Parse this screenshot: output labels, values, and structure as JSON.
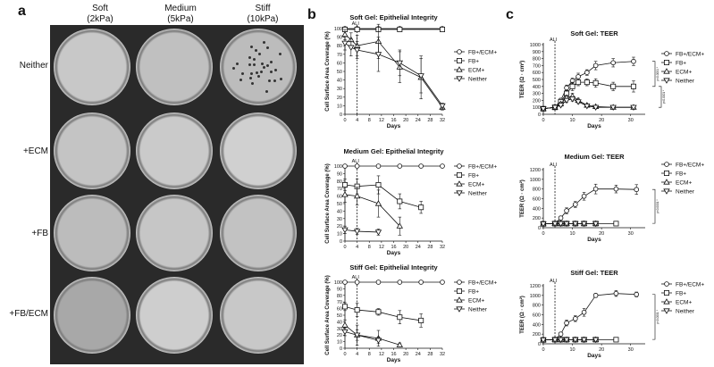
{
  "panel_a": {
    "letter": "a",
    "columns": [
      {
        "label": "Soft",
        "sub": "(2kPa)"
      },
      {
        "label": "Medium",
        "sub": "(5kPa)"
      },
      {
        "label": "Stiff",
        "sub": "(10kPa)"
      }
    ],
    "rows": [
      "Neither",
      "+ECM",
      "+FB",
      "+FB/ECM"
    ]
  },
  "panel_b": {
    "letter": "b"
  },
  "panel_c": {
    "letter": "c"
  },
  "chart_data": [
    {
      "id": "b1",
      "type": "line",
      "title": "Soft Gel: Epithelial Integrity",
      "xlabel": "Days",
      "ylabel": "Cell Surface Area Coverage (%)",
      "xlim": [
        0,
        32
      ],
      "ylim": [
        0,
        100
      ],
      "xticks": [
        0,
        4,
        8,
        12,
        16,
        20,
        24,
        28,
        32
      ],
      "yticks": [
        0,
        10,
        20,
        30,
        40,
        50,
        60,
        70,
        80,
        90,
        100
      ],
      "ali_day": 4,
      "ali_label": "ALI",
      "series": [
        {
          "name": "FB+/ECM+",
          "marker": "circle",
          "x": [
            0,
            4,
            11,
            18,
            32
          ],
          "y": [
            100,
            100,
            100,
            100,
            100
          ],
          "err": [
            0,
            0,
            0,
            0,
            0
          ]
        },
        {
          "name": "FB+",
          "marker": "square",
          "x": [
            0,
            4,
            11,
            18,
            32
          ],
          "y": [
            99,
            99,
            99,
            99,
            99
          ],
          "err": [
            0,
            0,
            0,
            0,
            0
          ]
        },
        {
          "name": "ECM+",
          "marker": "triangle-up",
          "x": [
            0,
            2,
            4,
            11,
            18,
            25,
            32
          ],
          "y": [
            93,
            87,
            80,
            85,
            55,
            43,
            8
          ],
          "err": [
            6,
            8,
            12,
            20,
            18,
            25,
            3
          ]
        },
        {
          "name": "Neither",
          "marker": "triangle-down",
          "x": [
            0,
            2,
            4,
            11,
            18,
            25,
            32
          ],
          "y": [
            83,
            78,
            75,
            70,
            60,
            45,
            10
          ],
          "err": [
            8,
            10,
            10,
            20,
            15,
            20,
            3
          ]
        }
      ]
    },
    {
      "id": "b2",
      "type": "line",
      "title": "Medium Gel: Epithelial Integrity",
      "xlabel": "Days",
      "ylabel": "Cell Surface Area  Coverage (%)",
      "xlim": [
        0,
        32
      ],
      "ylim": [
        0,
        100
      ],
      "xticks": [
        0,
        4,
        8,
        12,
        16,
        20,
        24,
        28,
        32
      ],
      "yticks": [
        0,
        10,
        20,
        30,
        40,
        50,
        60,
        70,
        80,
        90,
        100
      ],
      "ali_day": 4,
      "ali_label": "ALI",
      "series": [
        {
          "name": "FB+/ECM+",
          "marker": "circle",
          "x": [
            0,
            4,
            11,
            18,
            25,
            32
          ],
          "y": [
            100,
            100,
            100,
            100,
            100,
            100
          ],
          "err": [
            0,
            0,
            0,
            0,
            0,
            0
          ]
        },
        {
          "name": "FB+",
          "marker": "square",
          "x": [
            0,
            4,
            11,
            18,
            25
          ],
          "y": [
            75,
            73,
            75,
            53,
            45
          ],
          "err": [
            8,
            10,
            12,
            10,
            8
          ]
        },
        {
          "name": "ECM+",
          "marker": "triangle-up",
          "x": [
            0,
            4,
            11,
            18
          ],
          "y": [
            62,
            60,
            50,
            20
          ],
          "err": [
            10,
            12,
            18,
            12
          ]
        },
        {
          "name": "Neither",
          "marker": "triangle-down",
          "x": [
            0,
            4,
            11
          ],
          "y": [
            15,
            13,
            12
          ],
          "err": [
            5,
            4,
            4
          ]
        }
      ]
    },
    {
      "id": "b3",
      "type": "line",
      "title": "Stiff Gel: Epithelial Integrity",
      "xlabel": "Days",
      "ylabel": "Cell Surface Area  Coverage (%)",
      "xlim": [
        0,
        32
      ],
      "ylim": [
        0,
        100
      ],
      "xticks": [
        0,
        4,
        8,
        12,
        16,
        20,
        24,
        28,
        32
      ],
      "yticks": [
        0,
        10,
        20,
        30,
        40,
        50,
        60,
        70,
        80,
        90,
        100
      ],
      "ali_day": 4,
      "ali_label": "ALI",
      "series": [
        {
          "name": "FB+/ECM+",
          "marker": "circle",
          "x": [
            0,
            4,
            11,
            18,
            25,
            32
          ],
          "y": [
            100,
            100,
            100,
            100,
            100,
            100
          ],
          "err": [
            0,
            0,
            0,
            0,
            0,
            0
          ]
        },
        {
          "name": "FB+",
          "marker": "square",
          "x": [
            0,
            4,
            11,
            18,
            25
          ],
          "y": [
            63,
            58,
            55,
            47,
            42
          ],
          "err": [
            6,
            10,
            5,
            10,
            10
          ]
        },
        {
          "name": "ECM+",
          "marker": "triangle-up",
          "x": [
            0,
            4,
            11,
            18
          ],
          "y": [
            35,
            20,
            15,
            5
          ],
          "err": [
            8,
            15,
            12,
            3
          ]
        },
        {
          "name": "Neither",
          "marker": "triangle-down",
          "x": [
            0,
            4,
            11
          ],
          "y": [
            25,
            20,
            12
          ],
          "err": [
            6,
            8,
            5
          ]
        }
      ]
    },
    {
      "id": "c1",
      "type": "line",
      "title": "Soft Gel: TEER",
      "xlabel": "Days",
      "ylabel": "TEER (Ω · cm²)",
      "xlim": [
        0,
        35
      ],
      "ylim": [
        0,
        1000
      ],
      "xticks": [
        0,
        10,
        20,
        30
      ],
      "yticks": [
        0,
        100,
        200,
        300,
        400,
        500,
        600,
        700,
        800,
        900,
        1000
      ],
      "ali_day": 4,
      "ali_label": "ALI",
      "series": [
        {
          "name": "FB+/ECM+",
          "marker": "circle",
          "x": [
            0,
            4,
            6,
            8,
            10,
            12,
            15,
            18,
            24,
            31
          ],
          "y": [
            80,
            100,
            200,
            380,
            480,
            540,
            600,
            700,
            740,
            760
          ],
          "err": [
            10,
            15,
            30,
            40,
            40,
            50,
            40,
            60,
            60,
            60
          ]
        },
        {
          "name": "FB+",
          "marker": "square",
          "x": [
            0,
            4,
            6,
            8,
            10,
            12,
            15,
            18,
            24,
            31
          ],
          "y": [
            80,
            100,
            180,
            300,
            400,
            460,
            460,
            450,
            400,
            400
          ],
          "err": [
            10,
            15,
            30,
            40,
            60,
            50,
            50,
            60,
            60,
            80
          ]
        },
        {
          "name": "ECM+",
          "marker": "triangle-up",
          "x": [
            0,
            4,
            6,
            8,
            10,
            12,
            15,
            18,
            24,
            31
          ],
          "y": [
            80,
            100,
            150,
            240,
            260,
            200,
            130,
            110,
            100,
            100
          ],
          "err": [
            10,
            15,
            20,
            30,
            40,
            30,
            20,
            15,
            10,
            10
          ]
        },
        {
          "name": "Neither",
          "marker": "triangle-down",
          "x": [
            0,
            4,
            6,
            8,
            10,
            12,
            15,
            18,
            24,
            31
          ],
          "y": [
            80,
            100,
            130,
            200,
            220,
            180,
            120,
            100,
            100,
            100
          ],
          "err": [
            10,
            15,
            20,
            30,
            30,
            25,
            20,
            15,
            10,
            10
          ]
        }
      ],
      "brackets": [
        "p<0.0001 *",
        "p<0.0001 *"
      ]
    },
    {
      "id": "c2",
      "type": "line",
      "title": "Medium Gel: TEER",
      "xlabel": "Days",
      "ylabel": "TEER (Ω · cm²)",
      "xlim": [
        0,
        35
      ],
      "ylim": [
        0,
        1200
      ],
      "xticks": [
        0,
        10,
        20,
        30
      ],
      "yticks": [
        0,
        200,
        400,
        600,
        800,
        1000,
        1200
      ],
      "ali_day": 4,
      "ali_label": "ALI",
      "series": [
        {
          "name": "FB+/ECM+",
          "marker": "circle",
          "x": [
            0,
            4,
            6,
            8,
            11,
            14,
            18,
            25,
            32
          ],
          "y": [
            80,
            90,
            200,
            350,
            480,
            650,
            800,
            800,
            790
          ],
          "err": [
            10,
            15,
            40,
            60,
            60,
            80,
            100,
            80,
            100
          ]
        },
        {
          "name": "FB+",
          "marker": "square",
          "x": [
            0,
            4,
            6,
            8,
            11,
            14,
            18,
            25
          ],
          "y": [
            80,
            85,
            85,
            85,
            85,
            85,
            85,
            85
          ],
          "err": [
            5,
            5,
            5,
            5,
            5,
            5,
            5,
            5
          ]
        },
        {
          "name": "ECM+",
          "marker": "triangle-up",
          "x": [
            0,
            4,
            6,
            8,
            11,
            14,
            18
          ],
          "y": [
            80,
            85,
            85,
            85,
            85,
            85,
            85
          ],
          "err": [
            5,
            5,
            5,
            5,
            5,
            5,
            5
          ]
        },
        {
          "name": "Neither",
          "marker": "triangle-down",
          "x": [
            0,
            4,
            6,
            8,
            11,
            14,
            18
          ],
          "y": [
            80,
            85,
            85,
            85,
            85,
            85,
            85
          ],
          "err": [
            5,
            5,
            5,
            5,
            5,
            5,
            5
          ]
        }
      ],
      "brackets": [
        "p<0.0001 *"
      ]
    },
    {
      "id": "c3",
      "type": "line",
      "title": "Stiff Gel: TEER",
      "xlabel": "Days",
      "ylabel": "TEER (Ω · cm²)",
      "xlim": [
        0,
        35
      ],
      "ylim": [
        0,
        1200
      ],
      "xticks": [
        0,
        10,
        20,
        30
      ],
      "yticks": [
        0,
        200,
        400,
        600,
        800,
        1000,
        1200
      ],
      "ali_day": 4,
      "ali_label": "ALI",
      "series": [
        {
          "name": "FB+/ECM+",
          "marker": "circle",
          "x": [
            0,
            4,
            6,
            8,
            11,
            14,
            18,
            25,
            32
          ],
          "y": [
            80,
            90,
            200,
            430,
            520,
            650,
            1000,
            1040,
            1020
          ],
          "err": [
            10,
            15,
            40,
            60,
            60,
            80,
            40,
            60,
            50
          ]
        },
        {
          "name": "FB+",
          "marker": "square",
          "x": [
            0,
            4,
            6,
            8,
            11,
            14,
            18,
            25
          ],
          "y": [
            80,
            85,
            85,
            85,
            85,
            85,
            85,
            85
          ],
          "err": [
            5,
            5,
            5,
            5,
            5,
            5,
            5,
            5
          ]
        },
        {
          "name": "ECM+",
          "marker": "triangle-up",
          "x": [
            0,
            4,
            6,
            8,
            11,
            14,
            18
          ],
          "y": [
            80,
            85,
            85,
            85,
            85,
            85,
            85
          ],
          "err": [
            5,
            5,
            5,
            5,
            5,
            5,
            5
          ]
        },
        {
          "name": "Neither",
          "marker": "triangle-down",
          "x": [
            0,
            4,
            6,
            8,
            11,
            14,
            18
          ],
          "y": [
            80,
            85,
            85,
            85,
            85,
            85,
            85
          ],
          "err": [
            5,
            5,
            5,
            5,
            5,
            5,
            5
          ]
        }
      ],
      "brackets": [
        "p<0.0001 *"
      ]
    }
  ]
}
